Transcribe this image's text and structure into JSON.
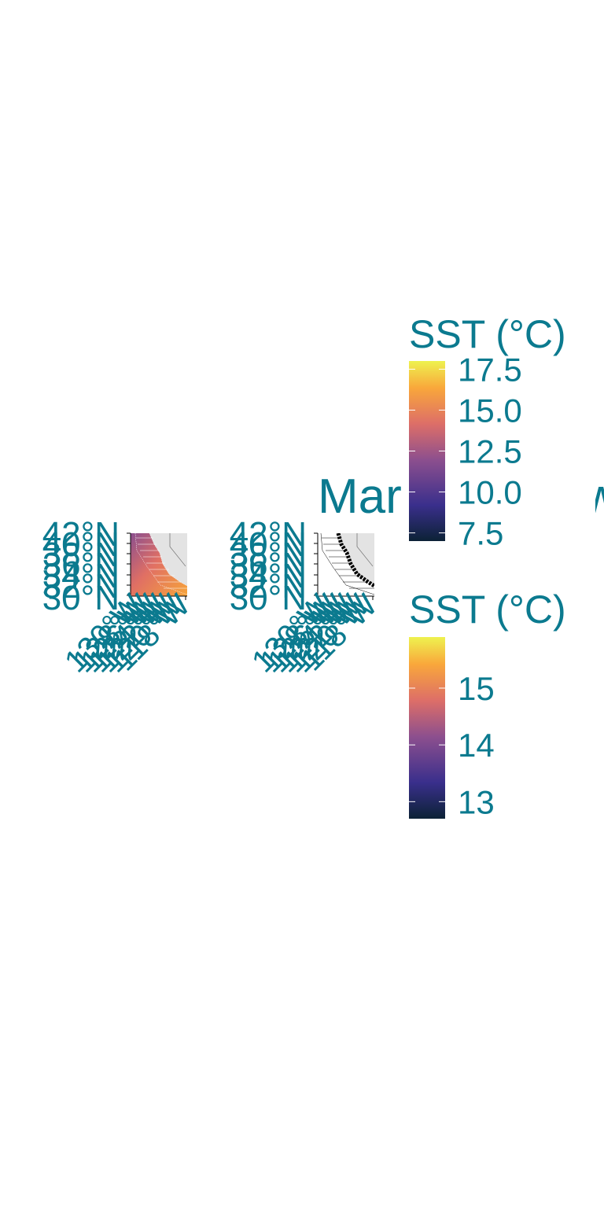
{
  "colors": {
    "label": "#0b7a8f",
    "land": "#e3e3e3",
    "ocean_missing": "#ffffff",
    "axis": "#000000"
  },
  "chart_data": [
    {
      "type": "heatmap",
      "panel": "left",
      "title": "",
      "ylabel_ticks": [
        "42°N",
        "40°N",
        "38°N",
        "36°N",
        "34°N",
        "32°N",
        "30°N"
      ],
      "xlabel_ticks": [
        "130°W",
        "128°W",
        "126°W",
        "124°W",
        "122°W",
        "120°W",
        "118°W"
      ],
      "legend": {
        "title": "SST (°C)",
        "ticks": [
          "7.5",
          "10.0",
          "12.5",
          "15.0",
          "17.5"
        ],
        "range": [
          7,
          18
        ]
      }
    },
    {
      "type": "heatmap",
      "panel": "right",
      "title": "Marine Heatwave Extent and",
      "ylabel_ticks": [
        "42°N",
        "40°N",
        "38°N",
        "36°N",
        "34°N",
        "32°N",
        "30°N"
      ],
      "xlabel_ticks": [
        "130°W",
        "128°W",
        "126°W",
        "124°W",
        "122°W",
        "120°W",
        "118°W"
      ],
      "legend": {
        "title": "SST (°C)",
        "ticks": [
          "13",
          "14",
          "15"
        ],
        "range": [
          12.7,
          15.9
        ]
      }
    }
  ]
}
